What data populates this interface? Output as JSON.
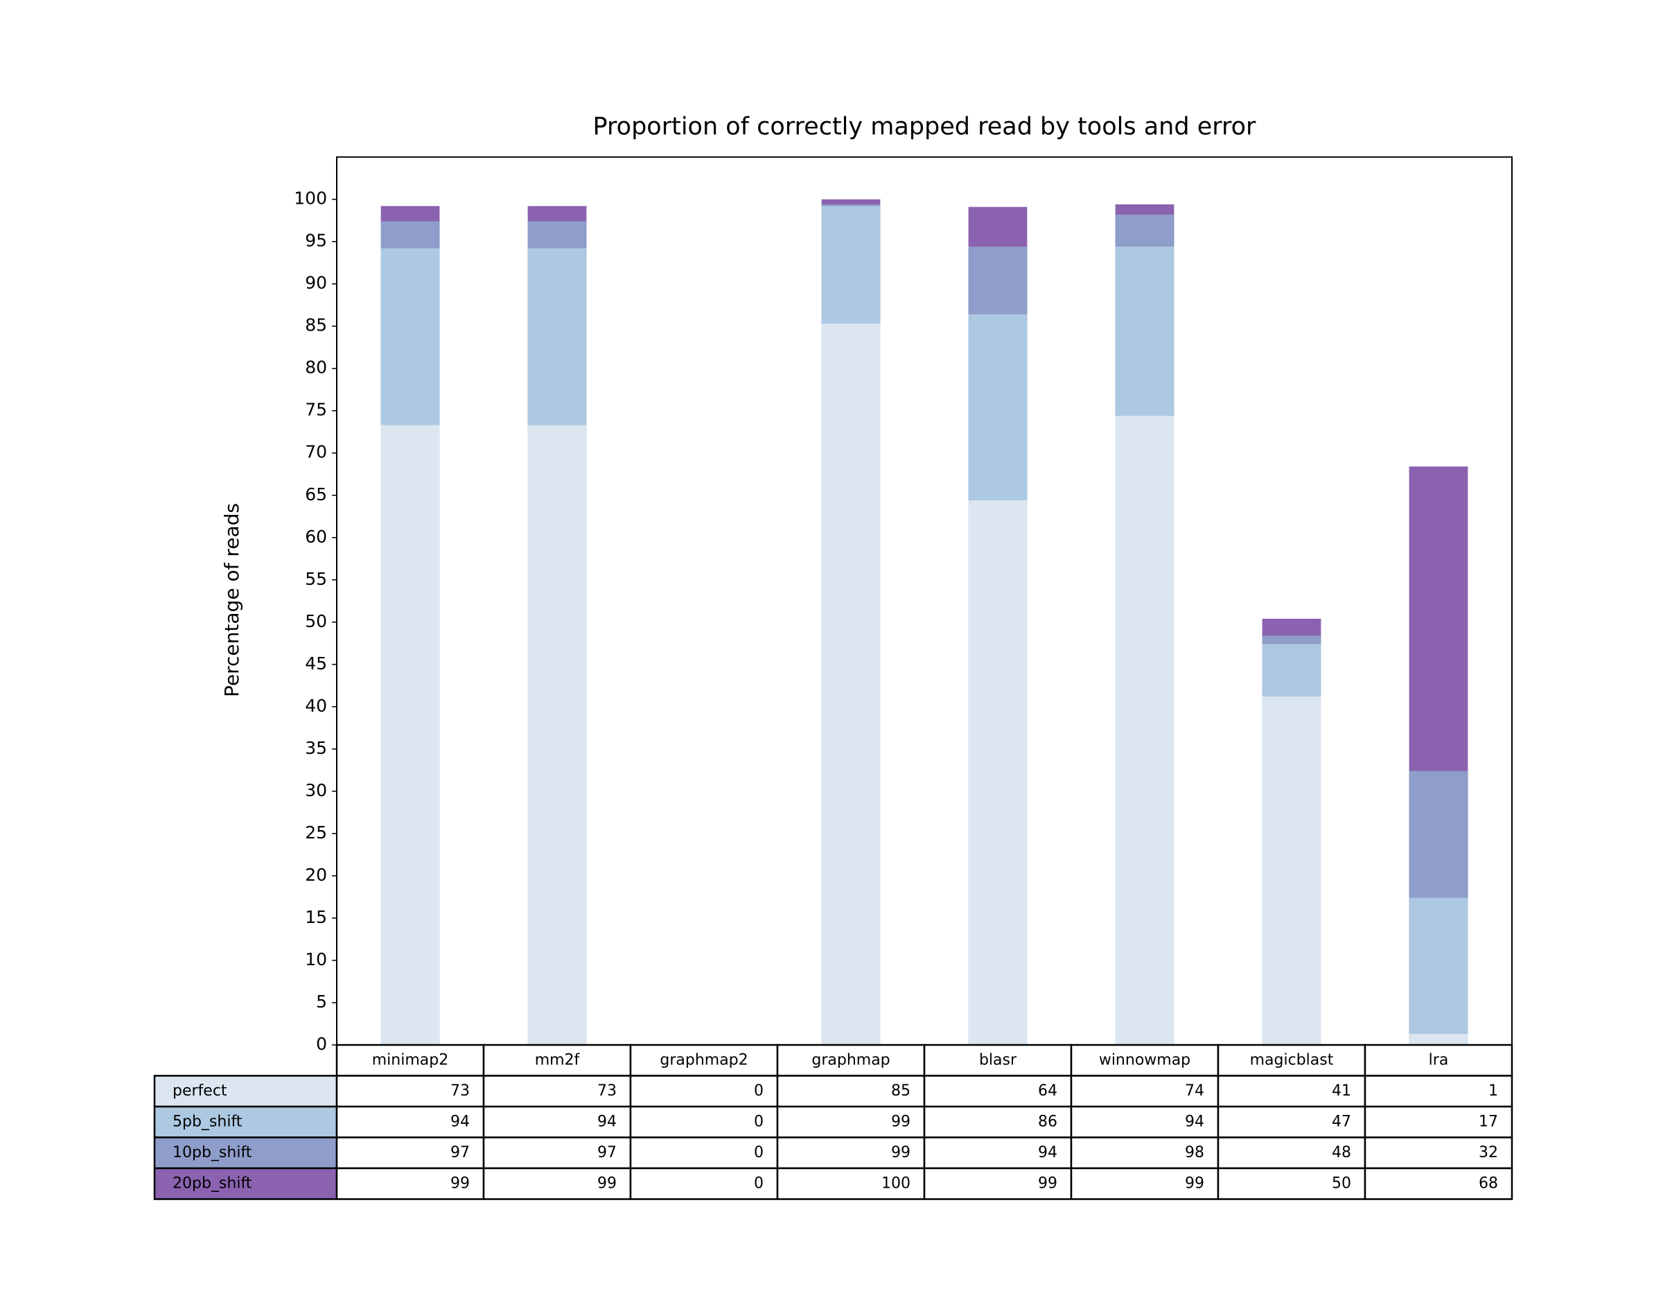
{
  "chart_data": {
    "type": "bar",
    "title": "Proportion of correctly mapped read by tools and error",
    "y_label": "Percentage of reads",
    "categories": [
      "minimap2",
      "mm2f",
      "graphmap2",
      "graphmap",
      "blasr",
      "winnowmap",
      "magicblast",
      "lra"
    ],
    "series": [
      {
        "name": "perfect",
        "color": "#dbe6f0",
        "values": [
          73.3,
          73.3,
          0,
          85.3,
          64.4,
          74.4,
          41.2,
          1.3
        ],
        "value_labels": [
          "73",
          "73",
          "0",
          "85",
          "64",
          "74",
          "41",
          "1"
        ]
      },
      {
        "name": "5pb_shift",
        "color": "#adc8e1",
        "values": [
          94.2,
          94.2,
          0,
          99.2,
          86.4,
          94.4,
          47.4,
          17.4
        ],
        "value_labels": [
          "94",
          "94",
          "0",
          "99",
          "86",
          "94",
          "47",
          "17"
        ]
      },
      {
        "name": "10pb_shift",
        "color": "#8e9dc9",
        "values": [
          97.4,
          97.4,
          0,
          99.4,
          94.4,
          98.2,
          48.4,
          32.4
        ],
        "value_labels": [
          "97",
          "97",
          "0",
          "99",
          "94",
          "98",
          "48",
          "32"
        ]
      },
      {
        "name": "20pb_shift",
        "color": "#8a62b0",
        "values": [
          99.2,
          99.2,
          0,
          100,
          99.1,
          99.4,
          50.4,
          68.4
        ],
        "value_labels": [
          "99",
          "99",
          "0",
          "100",
          "99",
          "99",
          "50",
          "68"
        ]
      }
    ],
    "ylim": [
      0,
      105
    ],
    "yticks": [
      0,
      5,
      10,
      15,
      20,
      25,
      30,
      35,
      40,
      45,
      50,
      55,
      60,
      65,
      70,
      75,
      80,
      85,
      90,
      95,
      100
    ]
  }
}
